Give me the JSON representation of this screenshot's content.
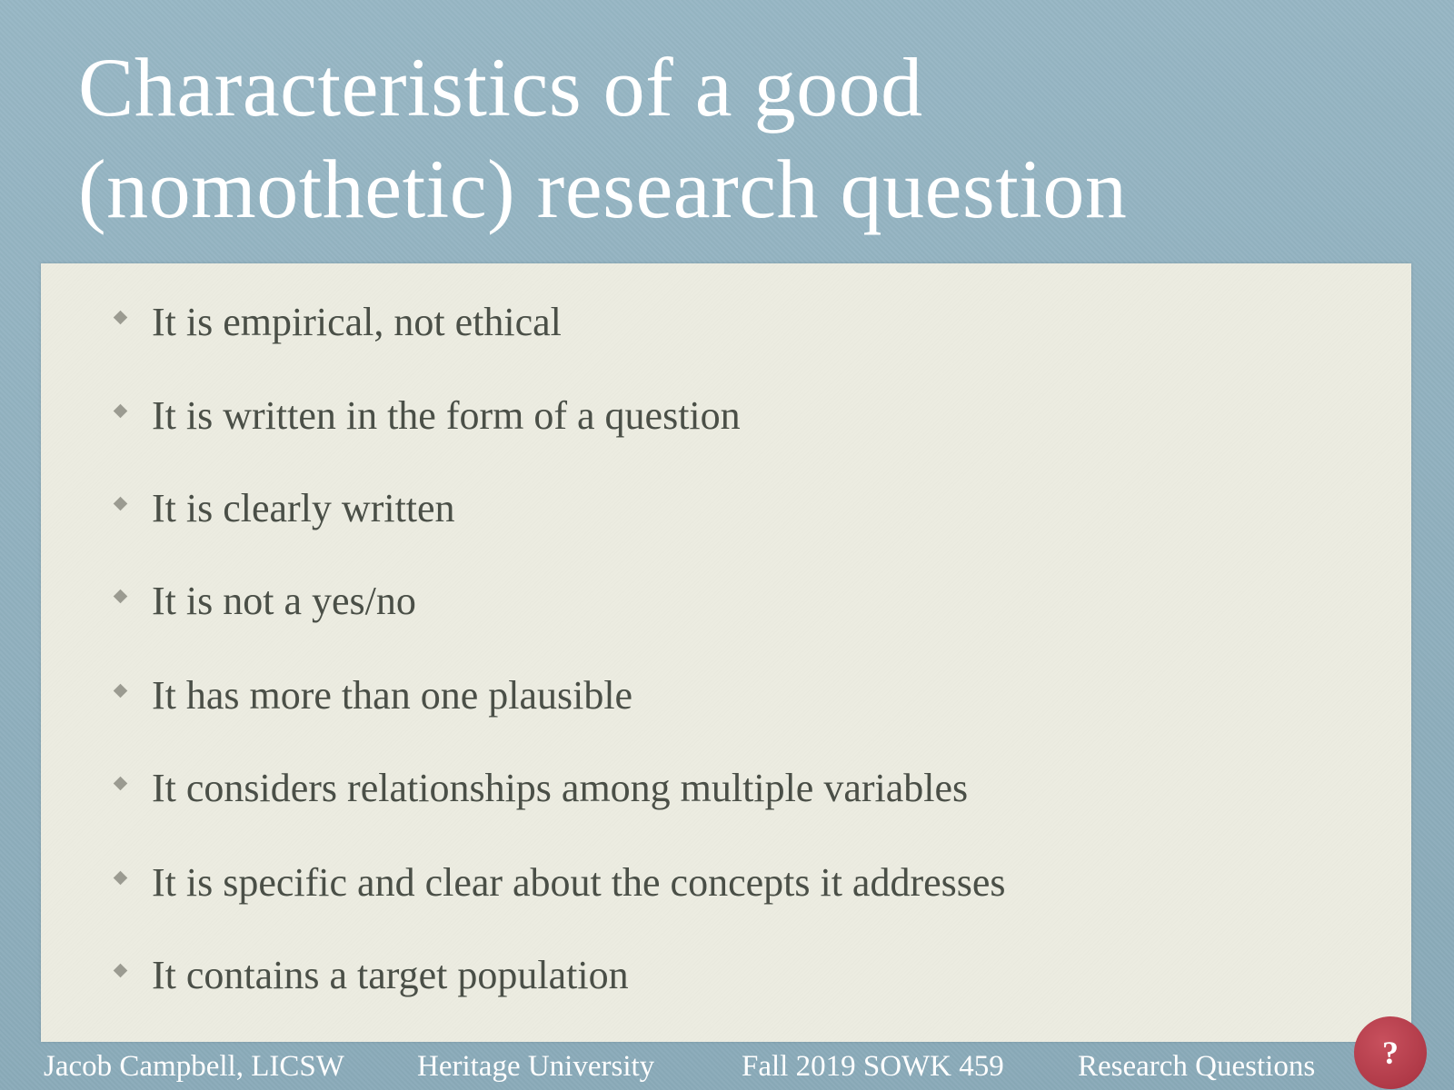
{
  "slide": {
    "title_line1": "Characteristics of a good",
    "title_line2": "(nomothetic) research question",
    "bullets": [
      "It is empirical, not ethical",
      "It is written in the form of a question",
      "It is clearly written",
      "It is not a yes/no",
      "It has more than one plausible",
      "It considers relationships among multiple variables",
      "It is specific and clear about the concepts it addresses",
      "It contains a target population"
    ]
  },
  "footer": {
    "author": "Jacob Campbell, LICSW",
    "institution": "Heritage University",
    "course": "Fall 2019 SOWK 459",
    "topic": "Research Questions"
  },
  "help_button": {
    "label": "?",
    "icon": "question-mark-icon",
    "color": "#b03a48"
  },
  "colors": {
    "background": "#8fb1c0",
    "panel": "#ecece1",
    "bullet_text": "#4a4f47",
    "title_text": "#ffffff"
  }
}
